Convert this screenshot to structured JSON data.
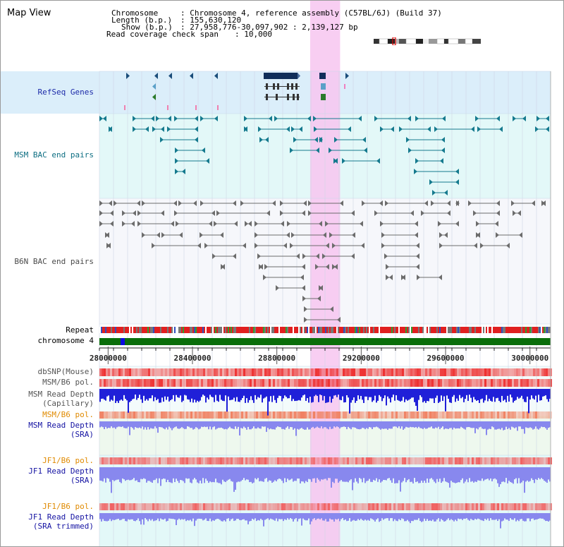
{
  "view_title": "Map View",
  "info": {
    "chromosome_label": "Chromosome",
    "chromosome_value": ": Chromosome 4, reference assembly (C57BL/6J) (Build 37)",
    "length_label": "Length (b.p.)",
    "length_value": ": 155,630,120",
    "show_label": "Show (b.p.)",
    "show_value": ": 27,958,776-30,097,902 : 2,139,127 bp",
    "coverage_label": "Read coverage check span",
    "coverage_value": ": 10,000"
  },
  "axis": {
    "start_bp": 27958776,
    "end_bp": 30097902,
    "ticks": [
      {
        "value": 28000000,
        "label": "28000000"
      },
      {
        "value": 28400000,
        "label": "28400000"
      },
      {
        "value": 28800000,
        "label": "28800000"
      },
      {
        "value": 29200000,
        "label": "29200000"
      },
      {
        "value": 29600000,
        "label": "29600000"
      },
      {
        "value": 30000000,
        "label": "30000000"
      }
    ],
    "highlight_bp": [
      28958000,
      29100000
    ]
  },
  "tracks": {
    "refseq": {
      "label": "RefSeq Genes"
    },
    "msm_bac": {
      "label": "MSM BAC end pairs"
    },
    "b6n_bac": {
      "label": "B6N BAC end pairs"
    },
    "repeat": {
      "label": "Repeat"
    },
    "chromosome": {
      "label": "chromosome 4"
    },
    "dbsnp": {
      "label": "dbSNP(Mouse)"
    },
    "msm_b6_pol_1": {
      "label": "MSM/B6 pol."
    },
    "msm_read_depth_cap": {
      "label1": "MSM Read Depth",
      "label2": "(Capillary)"
    },
    "msm_b6_pol_2": {
      "label": "MSM/B6 pol."
    },
    "msm_read_depth_sra": {
      "label1": "MSM Read Depth",
      "label2": "(SRA)"
    },
    "jf1_b6_pol_1": {
      "label": "JF1/B6 pol."
    },
    "jf1_read_depth_sra": {
      "label1": "JF1 Read Depth",
      "label2": "(SRA)"
    },
    "jf1_b6_pol_2": {
      "label": "JF1/B6 pol."
    },
    "jf1_read_depth_trim": {
      "label1": "JF1 Read Depth",
      "label2": "(SRA trimmed)"
    }
  },
  "colors": {
    "refseq_bg": "#dbeefa",
    "msm_bg": "#e3f8f8",
    "b6n_bg": "#f6f7fb",
    "highlight": "#f7c6f0",
    "refseq_feature": "#102e5a",
    "msm_feature": "#157a8e",
    "b6n_feature": "#6c6c6c",
    "chromosome": "#0a6e0a",
    "depth_blue": "#2020d8",
    "depth_lavender": "#8888ee",
    "pol_red": "#ee3030"
  }
}
